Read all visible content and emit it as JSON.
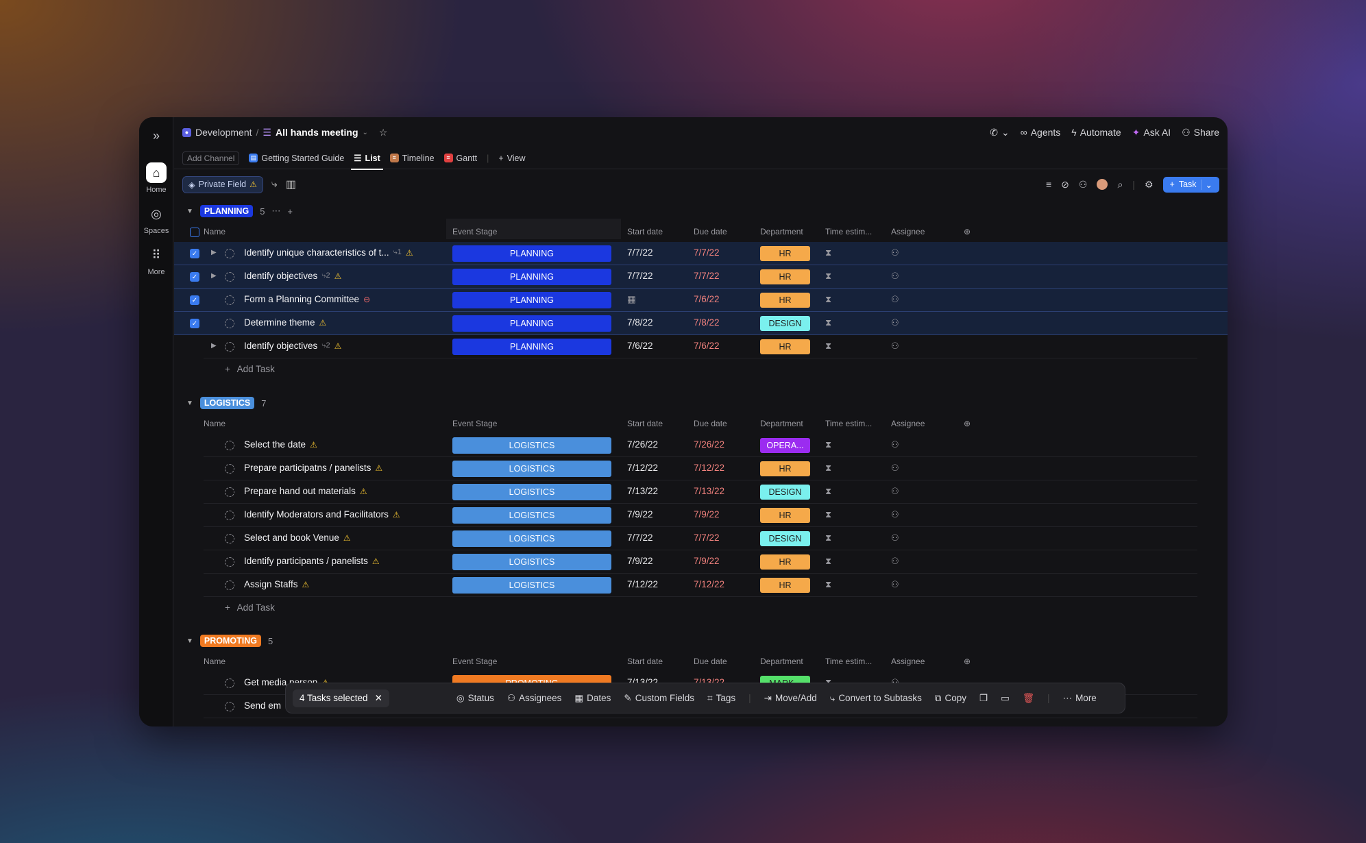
{
  "rail": {
    "home": "Home",
    "spaces": "Spaces",
    "more": "More"
  },
  "breadcrumb": {
    "space": "Development",
    "list": "All hands meeting"
  },
  "topbar": {
    "agents": "Agents",
    "automate": "Automate",
    "ask_ai": "Ask AI",
    "share": "Share"
  },
  "tabs": {
    "add_channel": "Add Channel",
    "items": [
      "Getting Started Guide",
      "List",
      "Timeline",
      "Gantt"
    ],
    "add_view": "View"
  },
  "toolbar": {
    "private_field": "Private Field",
    "task_button": "Task"
  },
  "columns": {
    "name": "Name",
    "event_stage": "Event Stage",
    "start": "Start date",
    "due": "Due date",
    "department": "Department",
    "time": "Time estim...",
    "assignee": "Assignee"
  },
  "groups": [
    {
      "label": "PLANNING",
      "count": "5",
      "add_task": "Add Task",
      "color": "#1b38e0",
      "tasks": [
        {
          "name": "Identify unique characteristics of t...",
          "subs": "1",
          "stage": "PLANNING",
          "start": "7/7/22",
          "due": "7/7/22",
          "dept": "HR",
          "selected": true,
          "expand": true
        },
        {
          "name": "Identify objectives",
          "subs": "2",
          "stage": "PLANNING",
          "start": "7/7/22",
          "due": "7/7/22",
          "dept": "HR",
          "selected": true,
          "expand": true
        },
        {
          "name": "Form a Planning Committee",
          "subs": "",
          "stage": "PLANNING",
          "start": "",
          "due": "7/6/22",
          "dept": "HR",
          "selected": true,
          "expand": false
        },
        {
          "name": "Determine theme",
          "subs": "",
          "stage": "PLANNING",
          "start": "7/8/22",
          "due": "7/8/22",
          "dept": "DESIGN",
          "selected": true,
          "expand": false
        },
        {
          "name": "Identify objectives",
          "subs": "2",
          "stage": "PLANNING",
          "start": "7/6/22",
          "due": "7/6/22",
          "dept": "HR",
          "selected": false,
          "expand": true
        }
      ]
    },
    {
      "label": "LOGISTICS",
      "count": "7",
      "add_task": "Add Task",
      "color": "#4a8fdc",
      "tasks": [
        {
          "name": "Select the date",
          "stage": "LOGISTICS",
          "start": "7/26/22",
          "due": "7/26/22",
          "dept": "OPERA..."
        },
        {
          "name": "Prepare participatns / panelists",
          "stage": "LOGISTICS",
          "start": "7/12/22",
          "due": "7/12/22",
          "dept": "HR"
        },
        {
          "name": "Prepare hand out materials",
          "stage": "LOGISTICS",
          "start": "7/13/22",
          "due": "7/13/22",
          "dept": "DESIGN"
        },
        {
          "name": "Identify Moderators and Facilitators",
          "stage": "LOGISTICS",
          "start": "7/9/22",
          "due": "7/9/22",
          "dept": "HR"
        },
        {
          "name": "Select and book Venue",
          "stage": "LOGISTICS",
          "start": "7/7/22",
          "due": "7/7/22",
          "dept": "DESIGN"
        },
        {
          "name": "Identify participants / panelists",
          "stage": "LOGISTICS",
          "start": "7/9/22",
          "due": "7/9/22",
          "dept": "HR"
        },
        {
          "name": "Assign Staffs",
          "stage": "LOGISTICS",
          "start": "7/12/22",
          "due": "7/12/22",
          "dept": "HR"
        }
      ]
    },
    {
      "label": "PROMOTING",
      "count": "5",
      "color": "#f07a22",
      "tasks": [
        {
          "name": "Get media person",
          "stage": "PROMOTING",
          "start": "7/13/22",
          "due": "7/13/22",
          "dept": "MARK..."
        },
        {
          "name": "Send em",
          "stage": "",
          "start": "",
          "due": "",
          "dept": ""
        }
      ]
    }
  ],
  "bulk": {
    "selected": "4 Tasks selected",
    "status": "Status",
    "assignees": "Assignees",
    "dates": "Dates",
    "custom_fields": "Custom Fields",
    "tags": "Tags",
    "move": "Move/Add",
    "convert": "Convert to Subtasks",
    "copy": "Copy",
    "more": "More"
  },
  "dept_colors": {
    "HR": "#f5a94a",
    "DESIGN": "#7af0ee",
    "OPERA...": "#9b2cf0",
    "MARK...": "#55e06a"
  }
}
